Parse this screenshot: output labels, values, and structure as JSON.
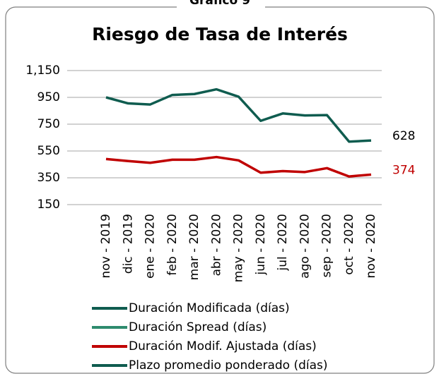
{
  "chart_data": {
    "type": "line",
    "caption": "Gráfico 9",
    "title": "Riesgo de Tasa de Interés",
    "categories": [
      "nov - 2019",
      "dic - 2019",
      "ene - 2020",
      "feb - 2020",
      "mar - 2020",
      "abr - 2020",
      "may - 2020",
      "jun - 2020",
      "jul - 2020",
      "ago - 2020",
      "sep - 2020",
      "oct - 2020",
      "nov - 2020"
    ],
    "series": [
      {
        "name": "Duración Modificada (días)",
        "color": "#0f5c4f",
        "values": [
          950,
          905,
          897,
          968,
          975,
          1010,
          955,
          775,
          830,
          815,
          818,
          620,
          628
        ]
      },
      {
        "name": "Duración Spread (días)",
        "color": "#2e8b6e",
        "values": [
          null,
          null,
          null,
          null,
          null,
          null,
          null,
          null,
          null,
          null,
          null,
          null,
          null
        ]
      },
      {
        "name": "Duración Modif. Ajustada (días)",
        "color": "#c00000",
        "values": [
          490,
          475,
          462,
          485,
          485,
          505,
          480,
          388,
          400,
          393,
          422,
          360,
          374
        ]
      },
      {
        "name": "Plazo promedio ponderado (días)",
        "color": "#0f5c4f",
        "values": [
          null,
          null,
          null,
          null,
          null,
          null,
          null,
          null,
          null,
          null,
          null,
          null,
          null
        ]
      }
    ],
    "ylim": [
      150,
      1150
    ],
    "yticks": [
      150,
      350,
      550,
      750,
      950,
      {
        "value": 1150,
        "label": "1,150"
      }
    ],
    "grid": true
  }
}
